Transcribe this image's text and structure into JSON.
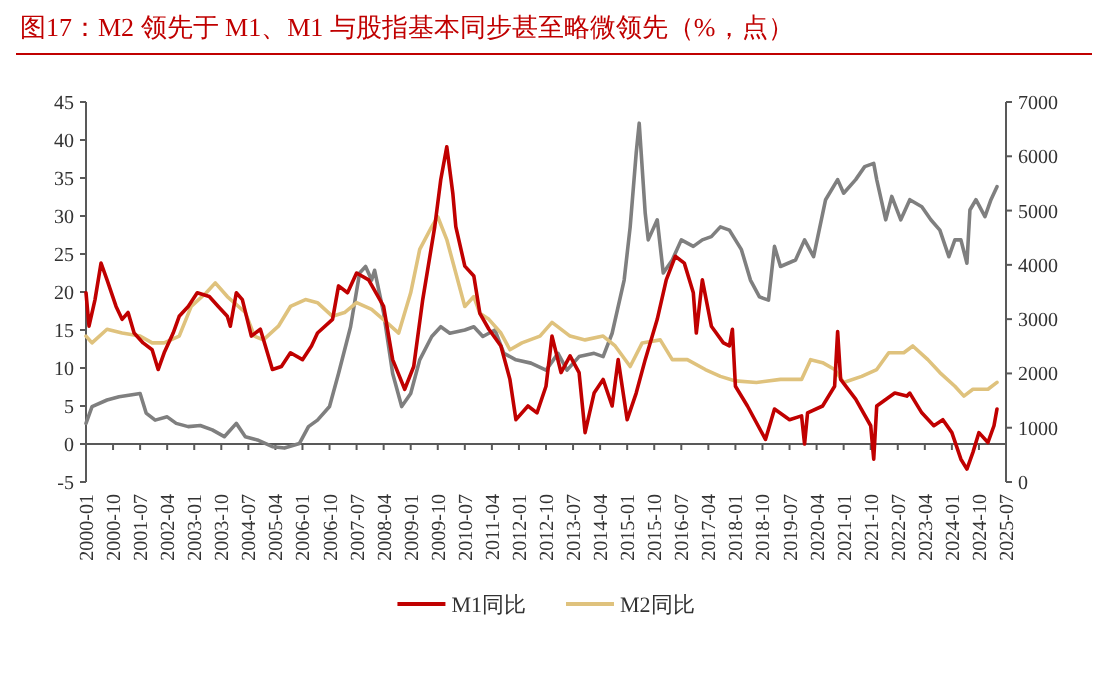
{
  "chart_data": {
    "type": "line",
    "title": "图17：M2 领先于 M1、M1 与股指基本同步甚至略微领先（%，点）",
    "xlim": [
      "2000-01",
      "2025-07"
    ],
    "xticks": [
      "2000-01",
      "2000-10",
      "2001-07",
      "2002-04",
      "2003-01",
      "2003-10",
      "2004-07",
      "2005-04",
      "2006-01",
      "2006-10",
      "2007-07",
      "2008-04",
      "2009-01",
      "2009-10",
      "2010-07",
      "2011-04",
      "2012-01",
      "2012-10",
      "2013-07",
      "2014-04",
      "2015-01",
      "2015-10",
      "2016-07",
      "2017-04",
      "2018-01",
      "2018-10",
      "2019-07",
      "2020-04",
      "2021-01",
      "2021-10",
      "2022-07",
      "2023-04",
      "2024-01",
      "2024-10",
      "2025-07"
    ],
    "ylim": [
      -5,
      45
    ],
    "yticks": [
      -5,
      0,
      5,
      10,
      15,
      20,
      25,
      30,
      35,
      40,
      45
    ],
    "y2lim": [
      0,
      7000
    ],
    "y2ticks": [
      0,
      1000,
      2000,
      3000,
      4000,
      5000,
      6000,
      7000
    ],
    "legend": "bottom",
    "series": [
      {
        "name": "M1同比",
        "color": "#c00000",
        "x": [
          "2000-01",
          "2000-02",
          "2000-04",
          "2000-06",
          "2000-08",
          "2000-11",
          "2001-01",
          "2001-03",
          "2001-05",
          "2001-08",
          "2001-11",
          "2002-01",
          "2002-03",
          "2002-06",
          "2002-08",
          "2002-11",
          "2003-02",
          "2003-06",
          "2003-09",
          "2003-12",
          "2004-01",
          "2004-03",
          "2004-05",
          "2004-08",
          "2004-11",
          "2005-03",
          "2005-06",
          "2005-09",
          "2006-01",
          "2006-04",
          "2006-06",
          "2006-11",
          "2007-01",
          "2007-04",
          "2007-07",
          "2007-11",
          "2008-04",
          "2008-07",
          "2008-11",
          "2009-02",
          "2009-05",
          "2009-09",
          "2009-11",
          "2010-01",
          "2010-03",
          "2010-04",
          "2010-07",
          "2010-10",
          "2010-12",
          "2011-03",
          "2011-07",
          "2011-10",
          "2011-12",
          "2012-04",
          "2012-07",
          "2012-10",
          "2012-12",
          "2013-03",
          "2013-06",
          "2013-09",
          "2013-11",
          "2014-02",
          "2014-05",
          "2014-08",
          "2014-10",
          "2015-01",
          "2015-04",
          "2015-07",
          "2015-11",
          "2016-02",
          "2016-05",
          "2016-08",
          "2016-11",
          "2016-12",
          "2017-02",
          "2017-05",
          "2017-09",
          "2017-11",
          "2017-12",
          "2018-01",
          "2018-05",
          "2018-11",
          "2019-02",
          "2019-07",
          "2019-11",
          "2019-12",
          "2020-01",
          "2020-06",
          "2020-10",
          "2020-11",
          "2020-12",
          "2021-05",
          "2021-10",
          "2021-11",
          "2021-12",
          "2022-06",
          "2022-10",
          "2022-11",
          "2023-03",
          "2023-07",
          "2023-10",
          "2024-01",
          "2024-04",
          "2024-06",
          "2024-08",
          "2024-10",
          "2025-01",
          "2025-03",
          "2025-04"
        ],
        "values": [
          19.9,
          15.5,
          19,
          23.8,
          21.6,
          18.1,
          16.4,
          17.3,
          14.6,
          13.3,
          12.4,
          9.8,
          12,
          14.6,
          16.8,
          18.1,
          19.9,
          19.4,
          18.1,
          16.8,
          15.5,
          19.9,
          19,
          14.2,
          15.1,
          9.8,
          10.2,
          12,
          11.1,
          12.9,
          14.6,
          16.4,
          20.8,
          19.9,
          22.5,
          21.6,
          18.1,
          11.1,
          7.2,
          10.2,
          19,
          28.6,
          34.8,
          39.1,
          33,
          28.6,
          23.4,
          22.1,
          17.2,
          15.1,
          12.9,
          8.5,
          3.2,
          5,
          4.1,
          7.6,
          14.2,
          9.4,
          11.6,
          9.4,
          1.5,
          6.7,
          8.5,
          5,
          11.1,
          3.2,
          6.7,
          11.1,
          16.4,
          21.6,
          24.7,
          23.8,
          19.9,
          14.6,
          21.6,
          15.5,
          13.3,
          12.9,
          15.1,
          7.6,
          5,
          0.6,
          4.6,
          3.2,
          3.7,
          0,
          4.1,
          5,
          7.6,
          14.8,
          8.5,
          5.9,
          2.4,
          -2,
          5,
          6.7,
          6.3,
          6.7,
          4.1,
          2.4,
          3.2,
          1.5,
          -2,
          -3.3,
          -1.1,
          1.5,
          0.2,
          2.4,
          4.6
        ]
      },
      {
        "name": "M2同比",
        "color": "#dfc27d",
        "x": [
          "2000-01",
          "2000-03",
          "2000-08",
          "2001-01",
          "2001-07",
          "2001-11",
          "2002-03",
          "2002-08",
          "2002-12",
          "2003-05",
          "2003-08",
          "2003-12",
          "2004-06",
          "2004-09",
          "2004-12",
          "2005-05",
          "2005-09",
          "2006-02",
          "2006-06",
          "2006-11",
          "2007-03",
          "2007-07",
          "2007-12",
          "2008-05",
          "2008-09",
          "2009-01",
          "2009-04",
          "2009-08",
          "2009-10",
          "2010-01",
          "2010-04",
          "2010-07",
          "2010-10",
          "2010-12",
          "2011-03",
          "2011-07",
          "2011-10",
          "2012-02",
          "2012-08",
          "2012-12",
          "2013-06",
          "2013-11",
          "2014-05",
          "2014-09",
          "2015-02",
          "2015-06",
          "2015-12",
          "2016-04",
          "2016-09",
          "2017-03",
          "2017-08",
          "2018-01",
          "2018-08",
          "2019-04",
          "2019-11",
          "2020-02",
          "2020-06",
          "2020-10",
          "2021-01",
          "2021-07",
          "2021-12",
          "2022-04",
          "2022-09",
          "2022-12",
          "2023-05",
          "2023-09",
          "2024-02",
          "2024-05",
          "2024-08",
          "2025-01",
          "2025-04"
        ],
        "values": [
          14.2,
          13.3,
          15.1,
          14.6,
          14.2,
          13.3,
          13.3,
          14.2,
          18.1,
          19.9,
          21.2,
          19.4,
          17.3,
          14.2,
          13.7,
          15.5,
          18.1,
          19,
          18.6,
          16.8,
          17.3,
          18.6,
          17.7,
          16,
          14.6,
          19.9,
          25.6,
          28.6,
          29.9,
          26.9,
          22.5,
          18.1,
          19.4,
          17.2,
          16.4,
          14.6,
          12.4,
          13.3,
          14.2,
          16,
          14.2,
          13.7,
          14.2,
          12.9,
          10.2,
          13.3,
          13.7,
          11.1,
          11.1,
          9.8,
          8.9,
          8.3,
          8.1,
          8.5,
          8.5,
          11.1,
          10.7,
          9.8,
          8.1,
          8.9,
          9.8,
          12,
          12,
          12.9,
          11.1,
          9.4,
          7.6,
          6.3,
          7.2,
          7.2,
          8.1
        ]
      },
      {
        "color": "#7f7f7f",
        "axis": "y2",
        "x": [
          "2000-01",
          "2000-03",
          "2000-08",
          "2000-12",
          "2001-07",
          "2001-09",
          "2001-12",
          "2002-04",
          "2002-07",
          "2002-11",
          "2003-03",
          "2003-07",
          "2003-11",
          "2004-03",
          "2004-06",
          "2004-10",
          "2005-03",
          "2005-07",
          "2005-12",
          "2006-03",
          "2006-06",
          "2006-10",
          "2007-01",
          "2007-05",
          "2007-08",
          "2007-10",
          "2007-12",
          "2008-01",
          "2008-04",
          "2008-07",
          "2008-10",
          "2009-01",
          "2009-04",
          "2009-08",
          "2009-11",
          "2010-02",
          "2010-07",
          "2010-10",
          "2011-01",
          "2011-05",
          "2011-08",
          "2011-12",
          "2012-05",
          "2012-10",
          "2013-02",
          "2013-05",
          "2013-09",
          "2014-02",
          "2014-05",
          "2014-08",
          "2014-12",
          "2015-02",
          "2015-04",
          "2015-05",
          "2015-07",
          "2015-08",
          "2015-11",
          "2016-01",
          "2016-04",
          "2016-07",
          "2016-11",
          "2017-02",
          "2017-05",
          "2017-08",
          "2017-11",
          "2018-03",
          "2018-06",
          "2018-09",
          "2018-12",
          "2019-02",
          "2019-04",
          "2019-09",
          "2019-12",
          "2020-03",
          "2020-07",
          "2020-11",
          "2021-01",
          "2021-05",
          "2021-08",
          "2021-11",
          "2021-12",
          "2022-03",
          "2022-05",
          "2022-08",
          "2022-11",
          "2023-03",
          "2023-06",
          "2023-09",
          "2023-12",
          "2024-02",
          "2024-04",
          "2024-06",
          "2024-07",
          "2024-09",
          "2024-12",
          "2025-02",
          "2025-04"
        ],
        "values": [
          1080,
          1390,
          1510,
          1570,
          1630,
          1270,
          1140,
          1200,
          1080,
          1020,
          1040,
          960,
          835,
          1080,
          835,
          775,
          650,
          625,
          710,
          1020,
          1140,
          1390,
          2000,
          2860,
          3850,
          3970,
          3720,
          3900,
          3110,
          2000,
          1390,
          1630,
          2250,
          2680,
          2860,
          2740,
          2800,
          2860,
          2680,
          2800,
          2370,
          2250,
          2190,
          2060,
          2370,
          2060,
          2310,
          2370,
          2310,
          2740,
          3720,
          4700,
          6060,
          6610,
          4950,
          4460,
          4830,
          3850,
          4090,
          4460,
          4340,
          4460,
          4520,
          4700,
          4640,
          4280,
          3720,
          3410,
          3350,
          4340,
          3970,
          4090,
          4460,
          4150,
          5200,
          5570,
          5320,
          5570,
          5810,
          5870,
          5570,
          4830,
          5260,
          4830,
          5200,
          5070,
          4830,
          4640,
          4150,
          4460,
          4460,
          4030,
          5010,
          5200,
          4890,
          5200,
          5440
        ]
      }
    ]
  }
}
